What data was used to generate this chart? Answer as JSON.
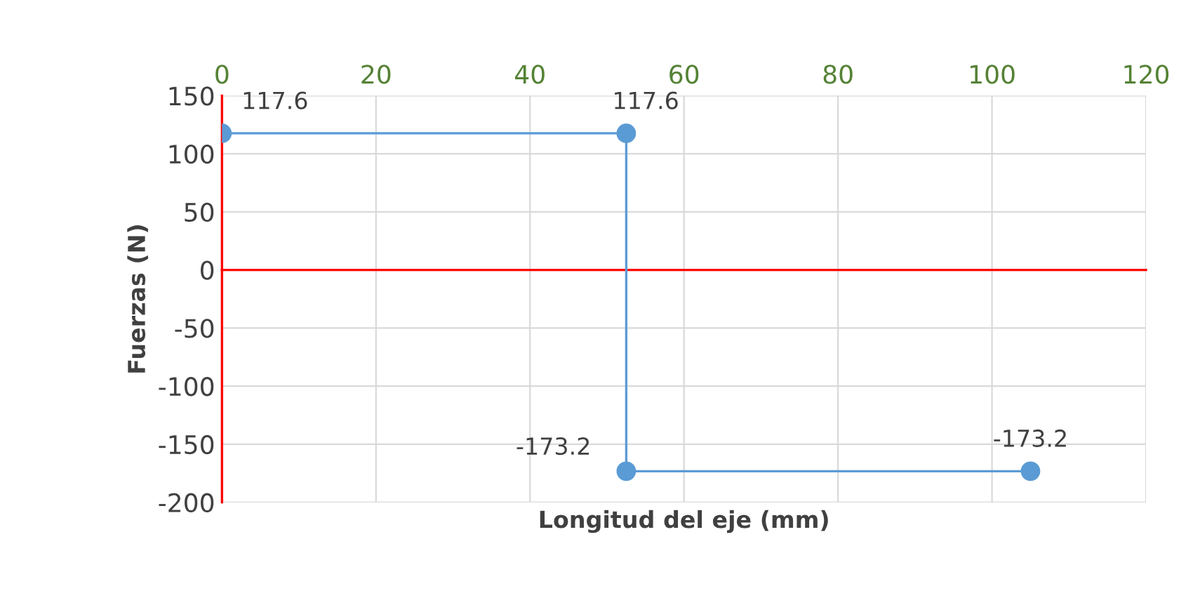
{
  "chart_data": {
    "type": "line",
    "xlabel": "Longitud del eje (mm)",
    "ylabel": "Fuerzas (N)",
    "x": [
      0,
      52.5,
      52.5,
      105
    ],
    "series": [
      {
        "color": "#5b9bd5",
        "values": [
          117.6,
          117.6,
          -173.2,
          -173.2
        ]
      }
    ],
    "xlim": [
      0,
      120
    ],
    "xticks": [
      0,
      20,
      40,
      60,
      80,
      100,
      120
    ],
    "ylim": [
      -200,
      150
    ],
    "yticks": [
      -200,
      -150,
      -100,
      -50,
      0,
      50,
      100,
      150
    ],
    "grid": true,
    "marker": "circle",
    "line_style": "solid",
    "data_labels": true,
    "ref_lines": [
      {
        "axis": "y",
        "value": 0,
        "color": "#ff0000"
      }
    ]
  }
}
